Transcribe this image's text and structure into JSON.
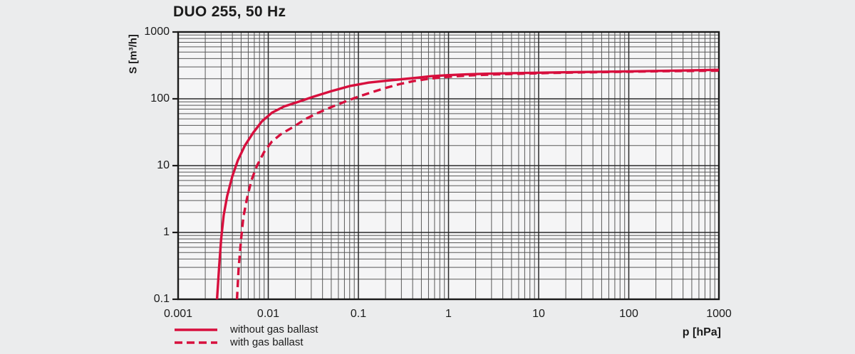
{
  "window": {
    "background": "#ebeced",
    "plot_background": "#f5f5f6"
  },
  "chart_data": {
    "type": "line",
    "title": "DUO 255, 50 Hz",
    "xlabel": "p [hPa]",
    "ylabel": "S [m³/h]",
    "x_scale": "log",
    "y_scale": "log",
    "xlim": [
      0.001,
      1000
    ],
    "ylim": [
      0.1,
      1000
    ],
    "x_tick_labels": [
      "0.001",
      "0.01",
      "0.1",
      "1",
      "10",
      "100",
      "1000"
    ],
    "y_tick_labels": [
      "1000",
      "100",
      "10",
      "1",
      "0.1"
    ],
    "grid": "log-log, major and minor gridlines both axes",
    "legend_position": "bottom-left outside plot",
    "accent_color": "#d70f3d",
    "series": [
      {
        "name": "without gas ballast",
        "line_style": "solid",
        "color": "#d70f3d",
        "points": [
          [
            0.0027,
            0.1
          ],
          [
            0.00285,
            0.3
          ],
          [
            0.003,
            0.8
          ],
          [
            0.0032,
            1.8
          ],
          [
            0.0035,
            3.5
          ],
          [
            0.004,
            7
          ],
          [
            0.0046,
            12
          ],
          [
            0.0055,
            20
          ],
          [
            0.0068,
            31
          ],
          [
            0.0085,
            46
          ],
          [
            0.011,
            62
          ],
          [
            0.015,
            77
          ],
          [
            0.022,
            91
          ],
          [
            0.032,
            108
          ],
          [
            0.05,
            130
          ],
          [
            0.08,
            155
          ],
          [
            0.13,
            175
          ],
          [
            0.2,
            186
          ],
          [
            0.3,
            196
          ],
          [
            0.45,
            207
          ],
          [
            0.64,
            218
          ],
          [
            1,
            226
          ],
          [
            1.6,
            232
          ],
          [
            2.5,
            237
          ],
          [
            5,
            242
          ],
          [
            10,
            246
          ],
          [
            25,
            251
          ],
          [
            60,
            255
          ],
          [
            150,
            259
          ],
          [
            400,
            265
          ],
          [
            1000,
            272
          ]
        ]
      },
      {
        "name": "with gas ballast",
        "line_style": "dashed",
        "color": "#d70f3d",
        "points": [
          [
            0.0045,
            0.1
          ],
          [
            0.0047,
            0.3
          ],
          [
            0.005,
            0.8
          ],
          [
            0.0053,
            1.7
          ],
          [
            0.0058,
            3.2
          ],
          [
            0.0065,
            6
          ],
          [
            0.0075,
            10
          ],
          [
            0.009,
            16
          ],
          [
            0.011,
            23
          ],
          [
            0.014,
            30
          ],
          [
            0.019,
            38
          ],
          [
            0.026,
            50
          ],
          [
            0.036,
            62
          ],
          [
            0.05,
            75
          ],
          [
            0.07,
            90
          ],
          [
            0.1,
            108
          ],
          [
            0.14,
            125
          ],
          [
            0.2,
            145
          ],
          [
            0.28,
            165
          ],
          [
            0.4,
            183
          ],
          [
            0.58,
            198
          ],
          [
            0.85,
            210
          ],
          [
            1.3,
            219
          ],
          [
            2,
            226
          ],
          [
            3.5,
            232
          ],
          [
            6,
            237
          ],
          [
            12,
            243
          ],
          [
            30,
            249
          ],
          [
            80,
            253
          ],
          [
            200,
            258
          ],
          [
            500,
            261
          ],
          [
            1000,
            264
          ]
        ]
      }
    ]
  }
}
